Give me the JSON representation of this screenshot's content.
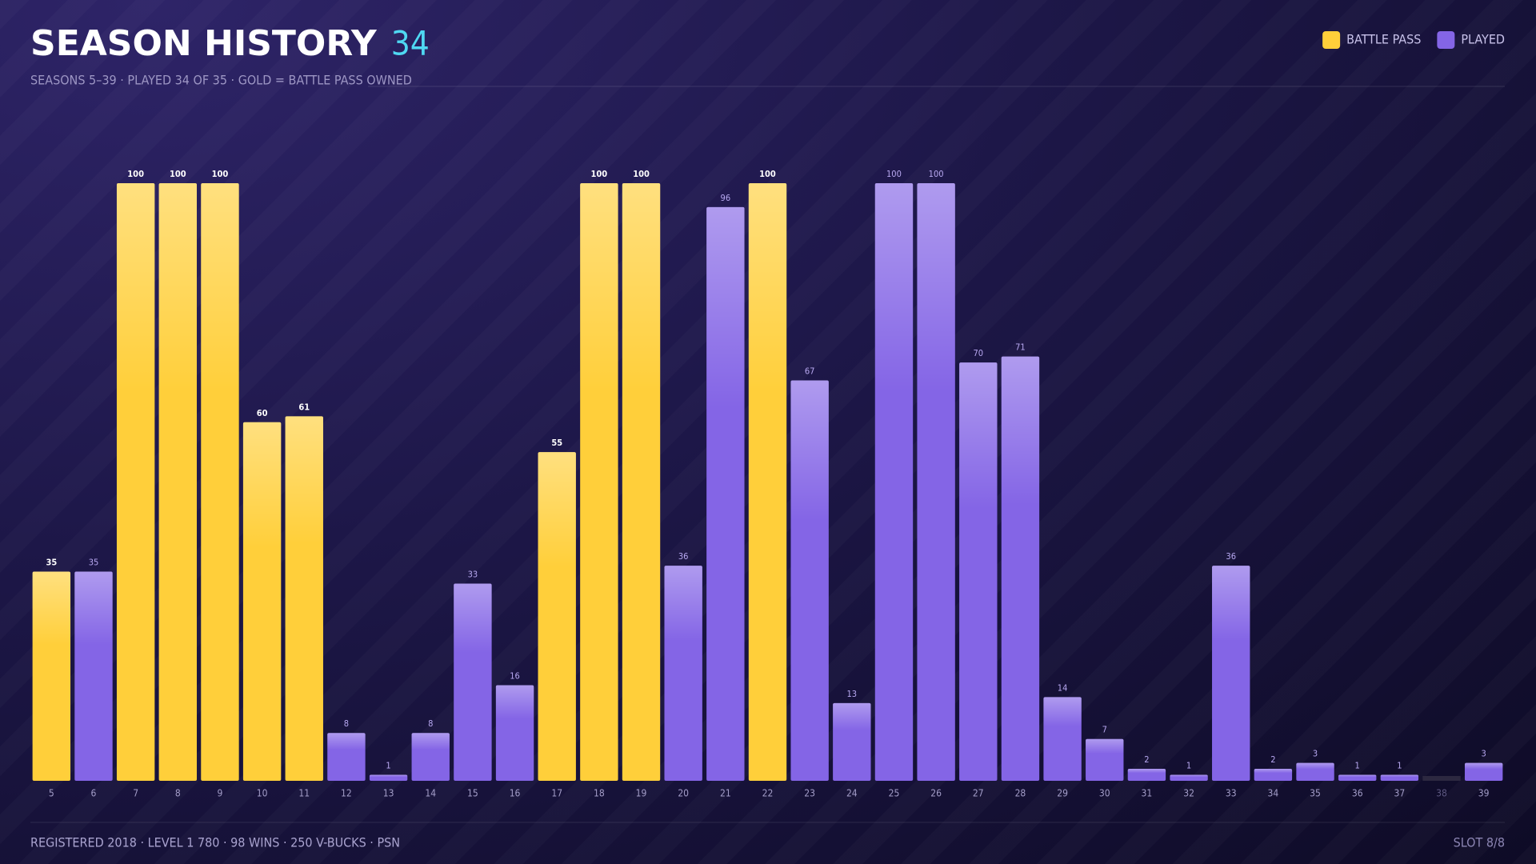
{
  "chart_data": {
    "type": "bar",
    "title": "SEASON HISTORY",
    "title_count": 34,
    "subtitle": "SEASONS 5–39 · PLAYED 34 OF 35 · GOLD = BATTLE PASS OWNED",
    "categories": [
      "5",
      "6",
      "7",
      "8",
      "9",
      "10",
      "11",
      "12",
      "13",
      "14",
      "15",
      "16",
      "17",
      "18",
      "19",
      "20",
      "21",
      "22",
      "23",
      "24",
      "25",
      "26",
      "27",
      "28",
      "29",
      "30",
      "31",
      "32",
      "33",
      "34",
      "35",
      "36",
      "37",
      "38",
      "39"
    ],
    "series": [
      {
        "name": "BATTLE PASS",
        "color": "#ffcf3a",
        "values": [
          35,
          null,
          100,
          100,
          100,
          60,
          61,
          null,
          null,
          null,
          null,
          null,
          55,
          100,
          100,
          null,
          null,
          100,
          null,
          null,
          null,
          null,
          null,
          null,
          null,
          null,
          null,
          null,
          null,
          null,
          null,
          null,
          null,
          null,
          null
        ]
      },
      {
        "name": "PLAYED",
        "color": "#8465e6",
        "values": [
          null,
          35,
          null,
          null,
          null,
          null,
          null,
          8,
          1,
          8,
          33,
          16,
          null,
          null,
          null,
          36,
          96,
          null,
          67,
          13,
          100,
          100,
          70,
          71,
          14,
          7,
          2,
          1,
          36,
          2,
          3,
          1,
          1,
          null,
          3
        ]
      }
    ],
    "ylim": [
      0,
      100
    ],
    "legend": "top-right",
    "footer": "REGISTERED 2018 · LEVEL 1 780 · 98 WINS · 250 V-BUCKS · PSN",
    "slot": "SLOT 8/8"
  }
}
